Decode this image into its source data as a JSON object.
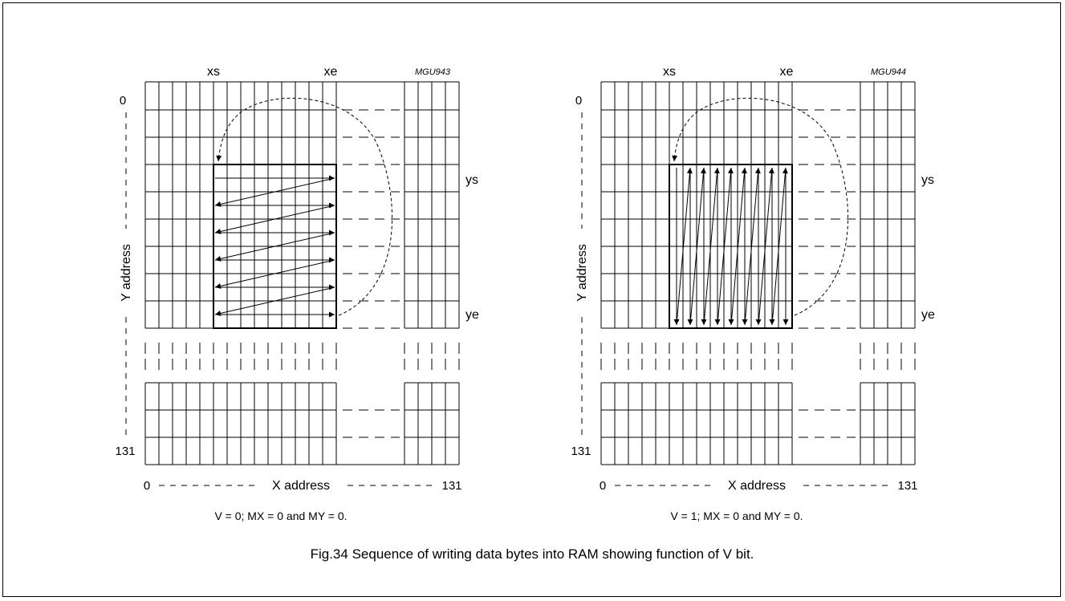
{
  "figure": {
    "caption": "Fig.34  Sequence of writing data bytes into RAM showing function of V bit."
  },
  "panels": [
    {
      "id": "MGU943",
      "code": "MGU943",
      "xs_label": "xs",
      "xe_label": "xe",
      "ys_label": "ys",
      "ye_label": "ye",
      "y_start": "0",
      "y_end": "131",
      "x_start": "0",
      "x_end": "131",
      "x_axis_label": "X address",
      "y_axis_label": "Y address",
      "condition": "V = 0; MX = 0 and MY = 0.",
      "write_direction": "horizontal"
    },
    {
      "id": "MGU944",
      "code": "MGU944",
      "xs_label": "xs",
      "xe_label": "xe",
      "ys_label": "ys",
      "ye_label": "ye",
      "y_start": "0",
      "y_end": "131",
      "x_start": "0",
      "x_end": "131",
      "x_axis_label": "X address",
      "y_axis_label": "Y address",
      "condition": "V = 1; MX = 0 and MY = 0.",
      "write_direction": "vertical"
    }
  ]
}
